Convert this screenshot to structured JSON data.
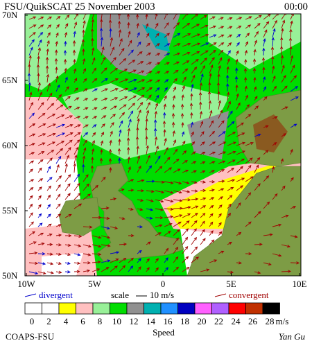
{
  "header": {
    "title": "FSU/QuikSCAT 25 November 2003",
    "time": "00:00"
  },
  "axes": {
    "lat_labels": [
      "70N",
      "65N",
      "60N",
      "55N",
      "50N"
    ],
    "lon_labels": [
      "10W",
      "5W",
      "0",
      "5E",
      "10E"
    ]
  },
  "legend": {
    "divergent": "divergent",
    "scale": "scale",
    "scale_value": "10 m/s",
    "convergent": "convergent",
    "speed_labels": [
      "0",
      "2",
      "4",
      "6",
      "8",
      "10",
      "12",
      "14",
      "16",
      "18",
      "20",
      "22",
      "24",
      "26",
      "28"
    ],
    "colors": [
      "#ffffff",
      "#ffffff",
      "#ffff00",
      "#ffc0c0",
      "#98f098",
      "#00dd00",
      "#909090",
      "#00b0b0",
      "#2090ff",
      "#0000c0",
      "#ff60ff",
      "#b060ff",
      "#ff0000",
      "#c03000",
      "#000000"
    ],
    "unit": "m/s",
    "title": "Speed"
  },
  "footer": {
    "credit": "COAPS-FSU",
    "author": "Yan Gu"
  }
}
